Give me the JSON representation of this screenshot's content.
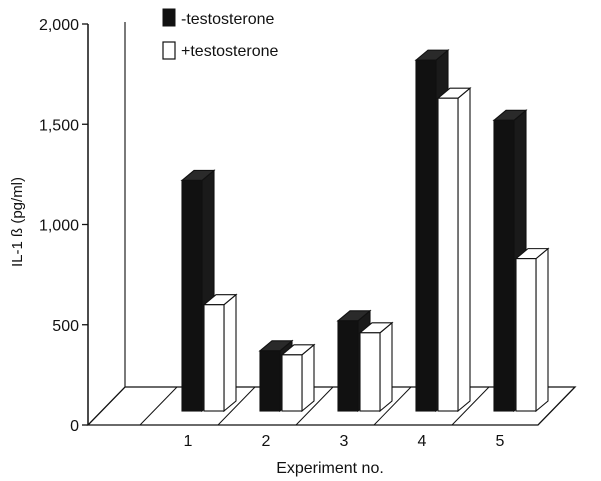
{
  "chart_data": {
    "type": "bar",
    "title": "",
    "xlabel": "Experiment no.",
    "ylabel": "IL-1 ß (pg/ml)",
    "ylim": [
      0,
      2000
    ],
    "yticks": [
      "0",
      "500",
      "1,000",
      "1,500",
      "2,000"
    ],
    "categories": [
      "1",
      "2",
      "3",
      "4",
      "5"
    ],
    "series": [
      {
        "name": "-testosterone",
        "values": [
          1150,
          300,
          450,
          1750,
          1450
        ],
        "color": "#111111"
      },
      {
        "name": "+testosterone",
        "values": [
          530,
          280,
          390,
          1560,
          760
        ],
        "color": "#ffffff"
      }
    ],
    "grid": false,
    "legend_position": "top-left",
    "style": "3d"
  }
}
